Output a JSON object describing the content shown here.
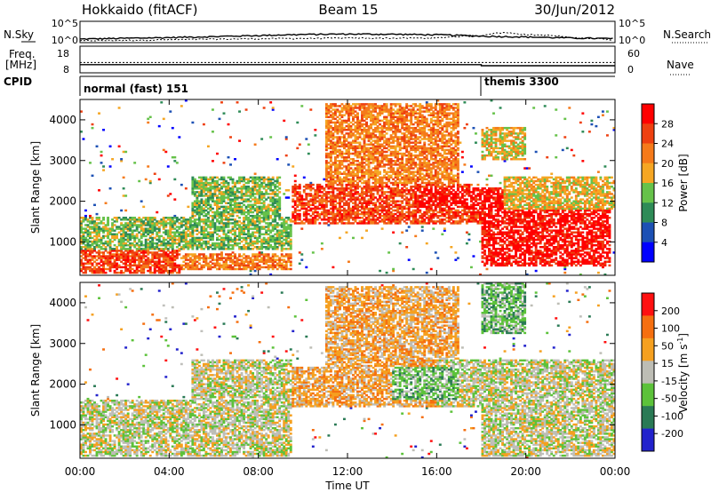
{
  "header": {
    "station": "Hokkaido (fitACF)",
    "beam": "Beam 15",
    "date": "30/Jun/2012"
  },
  "side_labels": {
    "nsky": "N.Sky",
    "freq": "Freq.",
    "freq_unit": "[MHz]",
    "cpid": "CPID",
    "nsearch": "N.Search",
    "nave": "Nave",
    "sky_ticks_left": [
      "10^5",
      "10^0"
    ],
    "sky_ticks_right": [
      "10^5",
      "10^0"
    ],
    "freq_ticks": [
      "18",
      "8"
    ],
    "nave_ticks": [
      "60",
      "0"
    ]
  },
  "cpid_segments": [
    {
      "label": "normal (fast) 151",
      "start_hour": 0
    },
    {
      "label": "themis 3300",
      "start_hour": 18
    }
  ],
  "colors": {
    "power": [
      "#0000ff",
      "#1c50b4",
      "#2e8b57",
      "#66c24a",
      "#f5a623",
      "#f57a1a",
      "#ee4010",
      "#ff0000"
    ],
    "velocity": [
      "#2222cc",
      "#2a7a55",
      "#5cc23a",
      "#bdbdb5",
      "#f5a020",
      "#f56f10",
      "#ff1010"
    ],
    "ground_scatter": "#c0c0bc"
  },
  "chart_data": [
    {
      "type": "line",
      "title": "N.Sky / N.Search",
      "x_range_hours": [
        0,
        24
      ],
      "y_scale": "log",
      "y_ticks": [
        "10^5",
        "10^0"
      ],
      "series": [
        {
          "name": "N.Sky",
          "style": "solid",
          "x": [
            0,
            2,
            4,
            6,
            8,
            10,
            12,
            14,
            16,
            18,
            20,
            22,
            24
          ],
          "y": [
            3,
            5,
            8,
            15,
            30,
            60,
            80,
            70,
            50,
            20,
            12,
            6,
            4
          ]
        },
        {
          "name": "N.Search",
          "style": "dotted",
          "x": [
            0,
            4,
            8,
            12,
            16,
            18,
            19,
            20,
            22,
            24
          ],
          "y": [
            1,
            2,
            4,
            6,
            6,
            30,
            200,
            60,
            8,
            2
          ]
        }
      ]
    },
    {
      "type": "line",
      "title": "Freq. / Nave",
      "x_range_hours": [
        0,
        24
      ],
      "y_left_ticks": [
        18,
        8
      ],
      "y_left_label": "Freq. [MHz]",
      "y_right_ticks": [
        60,
        0
      ],
      "y_right_label": "Nave",
      "series": [
        {
          "name": "Freq.",
          "style": "solid",
          "x": [
            0,
            18,
            18,
            24
          ],
          "y": [
            11,
            11,
            10.5,
            10.5
          ]
        },
        {
          "name": "Nave",
          "style": "dotted",
          "x": [
            0,
            24
          ],
          "y": [
            24,
            24
          ]
        }
      ]
    },
    {
      "type": "heatmap",
      "title": "Power",
      "xlabel": "",
      "ylabel": "Slant Range [km]",
      "x_range_hours": [
        0,
        24
      ],
      "ylim": [
        180,
        4500
      ],
      "y_ticks": [
        1000,
        2000,
        3000,
        4000
      ],
      "colorbar_label": "Power [dB]",
      "colorbar_ticks": [
        28,
        24,
        20,
        16,
        12,
        8,
        4
      ],
      "regions": [
        {
          "h0": 0,
          "h1": 4.5,
          "r0": 200,
          "r1": 800,
          "lv": 6
        },
        {
          "h0": 4.5,
          "h1": 9.5,
          "r0": 300,
          "r1": 700,
          "lv": 5
        },
        {
          "h0": 0,
          "h1": 9.5,
          "r0": 800,
          "r1": 1600,
          "lv": 3
        },
        {
          "h0": 5,
          "h1": 9,
          "r0": 1600,
          "r1": 2600,
          "lv": 3
        },
        {
          "h0": 9.5,
          "h1": 18,
          "r0": 1400,
          "r1": 2400,
          "lv": 6
        },
        {
          "h0": 11,
          "h1": 17,
          "r0": 2400,
          "r1": 4400,
          "lv": 5
        },
        {
          "h0": 15,
          "h1": 20,
          "r0": 1800,
          "r1": 2300,
          "lv": 7
        },
        {
          "h0": 18,
          "h1": 23.8,
          "r0": 400,
          "r1": 1800,
          "lv": 7
        },
        {
          "h0": 19,
          "h1": 24,
          "r0": 1800,
          "r1": 2600,
          "lv": 4
        },
        {
          "h0": 18,
          "h1": 20,
          "r0": 3000,
          "r1": 3800,
          "lv": 4
        }
      ]
    },
    {
      "type": "heatmap",
      "title": "Velocity",
      "xlabel": "Time UT",
      "ylabel": "Slant Range [km]",
      "x_range_hours": [
        0,
        24
      ],
      "x_ticks": [
        "00:00",
        "04:00",
        "08:00",
        "12:00",
        "16:00",
        "20:00",
        "00:00"
      ],
      "ylim": [
        180,
        4500
      ],
      "y_ticks": [
        1000,
        2000,
        3000,
        4000
      ],
      "colorbar_label": "Velocity [m s^-1]",
      "colorbar_ticks": [
        200,
        100,
        50,
        15,
        -15,
        -50,
        -100,
        -200
      ],
      "regions": [
        {
          "h0": 0,
          "h1": 9.5,
          "r0": 200,
          "r1": 1600,
          "lv": 3
        },
        {
          "h0": 5,
          "h1": 9.5,
          "r0": 1600,
          "r1": 2600,
          "lv": 3
        },
        {
          "h0": 9.5,
          "h1": 18,
          "r0": 1400,
          "r1": 2400,
          "lv": 4
        },
        {
          "h0": 11,
          "h1": 17,
          "r0": 2400,
          "r1": 4400,
          "lv": 4
        },
        {
          "h0": 16,
          "h1": 24,
          "r0": 1400,
          "r1": 2600,
          "lv": 3
        },
        {
          "h0": 18,
          "h1": 24,
          "r0": 200,
          "r1": 1400,
          "lv": 3
        },
        {
          "h0": 18,
          "h1": 20,
          "r0": 3200,
          "r1": 4500,
          "lv": 2
        },
        {
          "h0": 14,
          "h1": 17,
          "r0": 1600,
          "r1": 2400,
          "lv": 2
        }
      ]
    }
  ],
  "velocity_label_parts": {
    "base": "Velocity [m s",
    "exp": "-1",
    "close": "]"
  }
}
